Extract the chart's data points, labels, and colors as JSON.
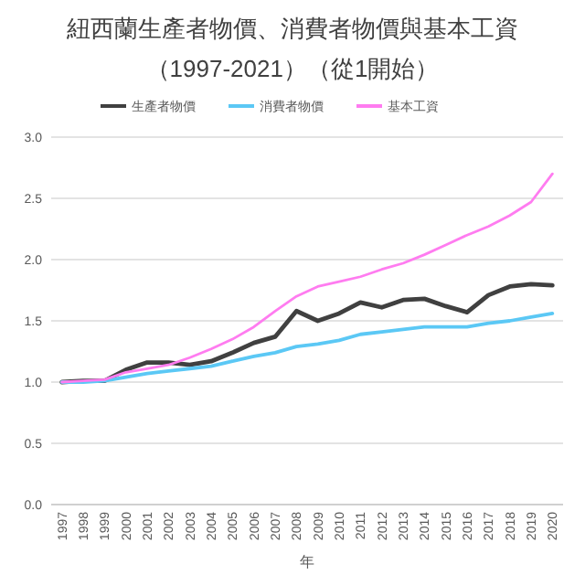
{
  "chart_data": {
    "type": "line",
    "title": "紐西蘭生產者物價、消費者物價與基本工資",
    "subtitle": "（1997-2021）（從1開始）",
    "xlabel": "年",
    "categories": [
      "1997",
      "1998",
      "1999",
      "2000",
      "2001",
      "2002",
      "2003",
      "2004",
      "2005",
      "2006",
      "2007",
      "2008",
      "2009",
      "2010",
      "2011",
      "2012",
      "2013",
      "2014",
      "2015",
      "2016",
      "2017",
      "2018",
      "2019",
      "2020"
    ],
    "series": [
      {
        "name": "生產者物價",
        "color": "#404040",
        "values": [
          1.0,
          1.01,
          1.01,
          1.1,
          1.16,
          1.16,
          1.14,
          1.17,
          1.24,
          1.32,
          1.37,
          1.58,
          1.5,
          1.56,
          1.65,
          1.61,
          1.67,
          1.68,
          1.62,
          1.57,
          1.71,
          1.78,
          1.8,
          1.79
        ]
      },
      {
        "name": "消費者物價",
        "color": "#5bc8f5",
        "values": [
          1.0,
          1.0,
          1.01,
          1.04,
          1.07,
          1.09,
          1.11,
          1.13,
          1.17,
          1.21,
          1.24,
          1.29,
          1.31,
          1.34,
          1.39,
          1.41,
          1.43,
          1.45,
          1.45,
          1.45,
          1.48,
          1.5,
          1.53,
          1.56
        ]
      },
      {
        "name": "基本工資",
        "color": "#ff7cf0",
        "values": [
          1.0,
          1.01,
          1.02,
          1.08,
          1.11,
          1.14,
          1.2,
          1.27,
          1.35,
          1.45,
          1.58,
          1.7,
          1.78,
          1.82,
          1.86,
          1.92,
          1.97,
          2.04,
          2.12,
          2.2,
          2.27,
          2.36,
          2.47,
          2.7
        ]
      }
    ],
    "ylim": [
      0,
      3
    ],
    "yticks": [
      {
        "value": 0,
        "label": "0.0"
      },
      {
        "value": 0.5,
        "label": "0.5"
      },
      {
        "value": 1,
        "label": "1.0"
      },
      {
        "value": 1.5,
        "label": "1.5"
      },
      {
        "value": 2,
        "label": "2.0"
      },
      {
        "value": 2.5,
        "label": "2.5"
      },
      {
        "value": 3,
        "label": "3.0"
      }
    ],
    "grid": "y",
    "legend": "top",
    "marker": "none",
    "line_style": "solid"
  }
}
